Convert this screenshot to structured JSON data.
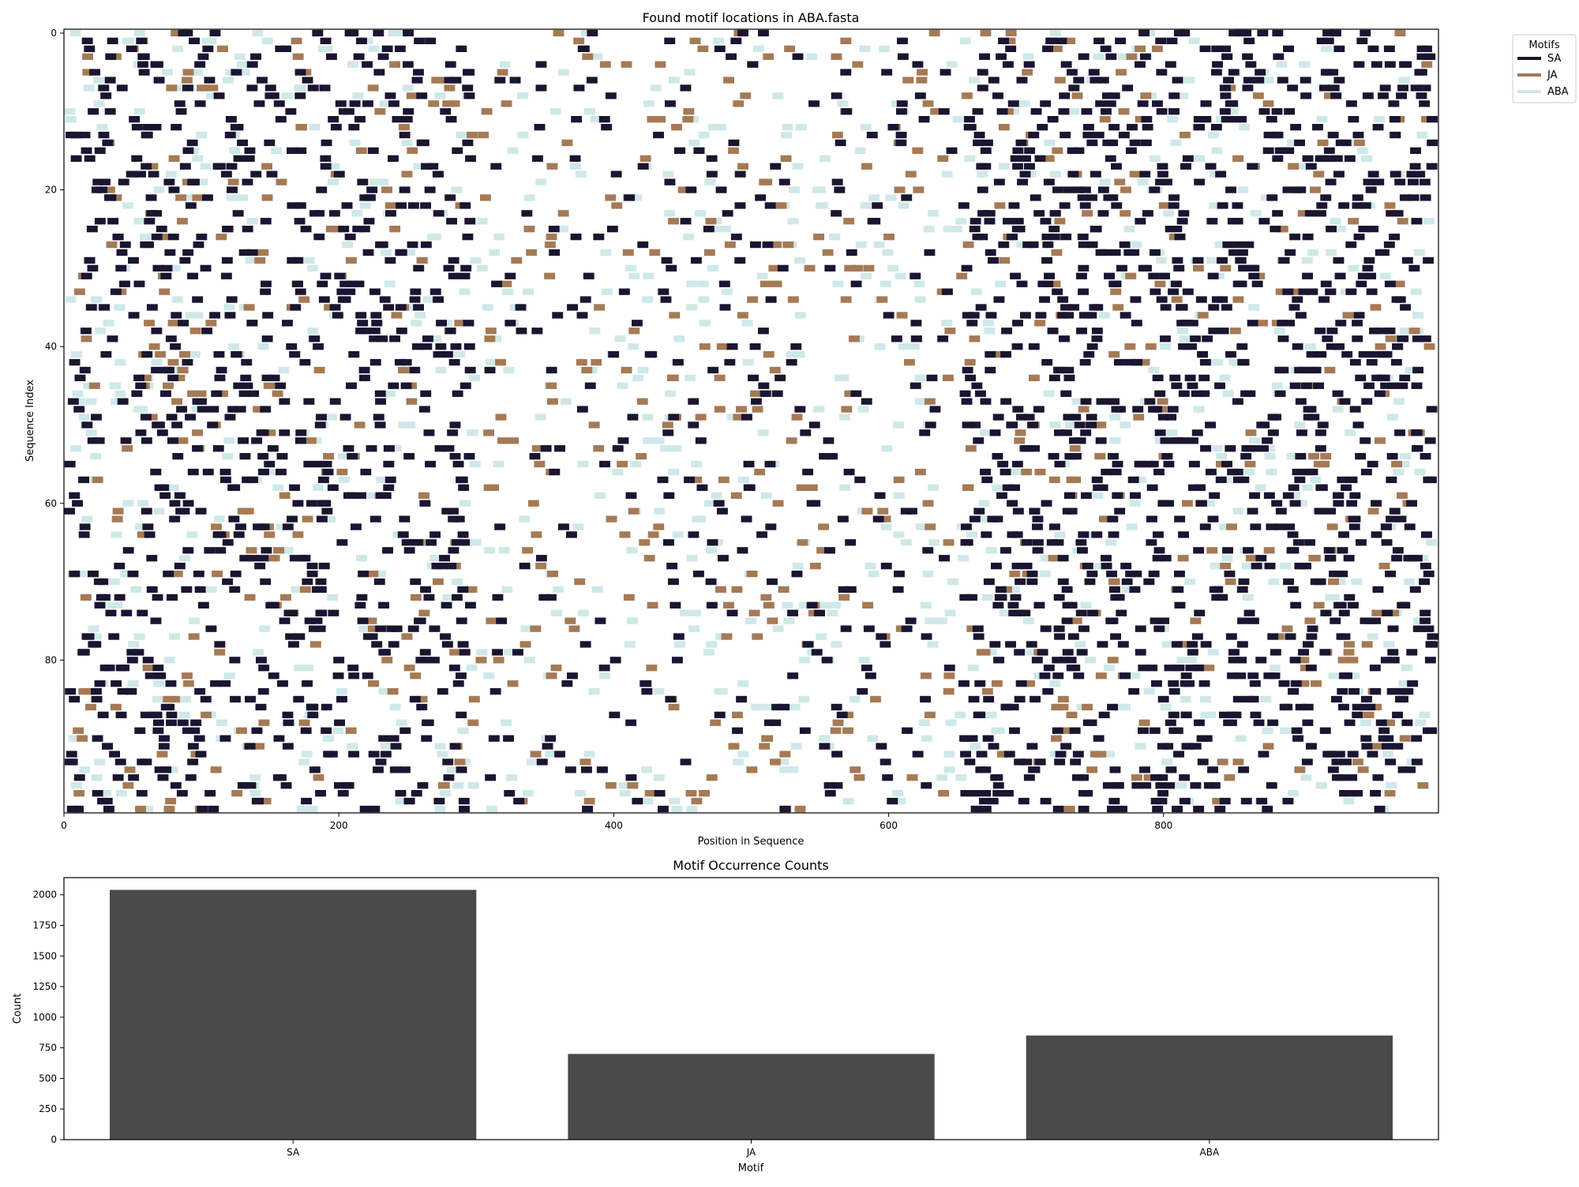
{
  "chart_data": [
    {
      "type": "heatmap",
      "title": "Found motif locations in ABA.fasta",
      "xlabel": "Position in Sequence",
      "ylabel": "Sequence Index",
      "xlim": [
        0,
        1000
      ],
      "ylim": [
        0,
        100
      ],
      "y_inverted": true,
      "xticks": [
        0,
        200,
        400,
        600,
        800
      ],
      "yticks": [
        0,
        20,
        40,
        60,
        80
      ],
      "grid": false,
      "legend": {
        "title": "Motifs",
        "placement": "outside-top-right",
        "entries": [
          {
            "name": "SA",
            "color": "#1a1530"
          },
          {
            "name": "JA",
            "color": "#a57a55"
          },
          {
            "name": "ABA",
            "color": "#cfe8e8"
          }
        ]
      },
      "motif_width_positions": 8,
      "density_profile": {
        "SA": [
          {
            "x": [
              0,
              300
            ],
            "per_row": 8
          },
          {
            "x": [
              300,
              650
            ],
            "per_row": 3
          },
          {
            "x": [
              650,
              1000
            ],
            "per_row": 12
          }
        ],
        "JA": [
          {
            "x": [
              0,
              1000
            ],
            "per_row": 7
          }
        ],
        "ABA": [
          {
            "x": [
              0,
              1000
            ],
            "per_row": 8.5
          }
        ]
      },
      "note_total_occurrences": {
        "SA": 2040,
        "JA": 700,
        "ABA": 850
      }
    },
    {
      "type": "bar",
      "title": "Motif Occurrence Counts",
      "xlabel": "Motif",
      "ylabel": "Count",
      "categories": [
        "SA",
        "JA",
        "ABA"
      ],
      "values": [
        2040,
        700,
        850
      ],
      "ylim": [
        0,
        2140
      ],
      "yticks": [
        0,
        250,
        500,
        750,
        1000,
        1250,
        1500,
        1750,
        2000
      ],
      "bar_color": "#4a4a4a",
      "grid": false
    }
  ]
}
